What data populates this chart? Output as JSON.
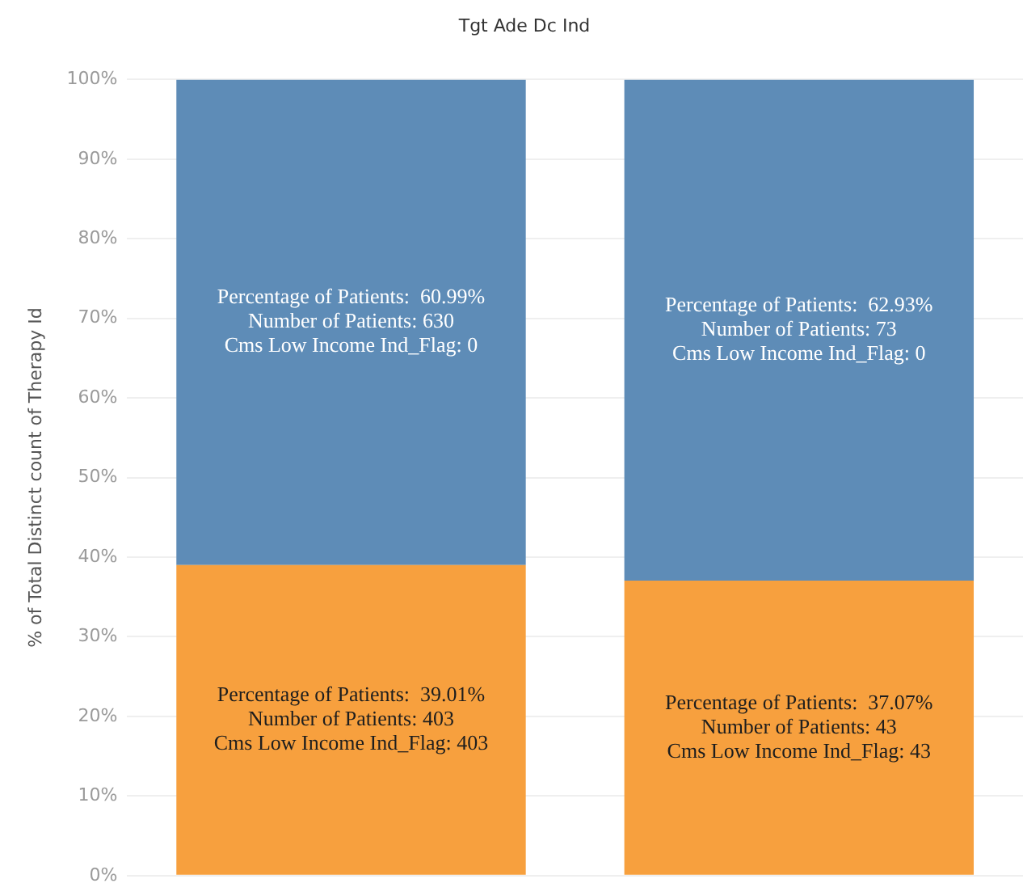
{
  "chart_data": {
    "type": "bar",
    "title": "Tgt Ade Dc Ind",
    "ylabel": "% of Total Distinct count of Therapy Id",
    "categories": [
      null,
      null
    ],
    "stacked": true,
    "series": [
      {
        "color": "#f7a03e",
        "values": [
          39.01,
          37.07
        ],
        "value_labels": [
          "Percentage of Patients:  39.01%\nNumber of Patients: 403\nCms Low Income Ind_Flag: 403",
          "Percentage of Patients:  37.07%\nNumber of Patients: 43\nCms Low Income Ind_Flag: 43"
        ]
      },
      {
        "color": "#5e8cb7",
        "values": [
          60.99,
          62.93
        ],
        "value_labels": [
          "Percentage of Patients:  60.99%\nNumber of Patients: 630\nCms Low Income Ind_Flag: 0",
          "Percentage of Patients:  62.93%\nNumber of Patients: 73\nCms Low Income Ind_Flag: 0"
        ]
      }
    ],
    "ylim": [
      0,
      100
    ],
    "yticks": [
      {
        "value": 0,
        "label": "0%"
      },
      {
        "value": 10,
        "label": "10%"
      },
      {
        "value": 20,
        "label": "20%"
      },
      {
        "value": 30,
        "label": "30%"
      },
      {
        "value": 40,
        "label": "40%"
      },
      {
        "value": 50,
        "label": "50%"
      },
      {
        "value": 60,
        "label": "60%"
      },
      {
        "value": 70,
        "label": "70%"
      },
      {
        "value": 80,
        "label": "80%"
      },
      {
        "value": 90,
        "label": "90%"
      },
      {
        "value": 100,
        "label": "100%"
      }
    ],
    "grid": "y",
    "legend": false
  }
}
